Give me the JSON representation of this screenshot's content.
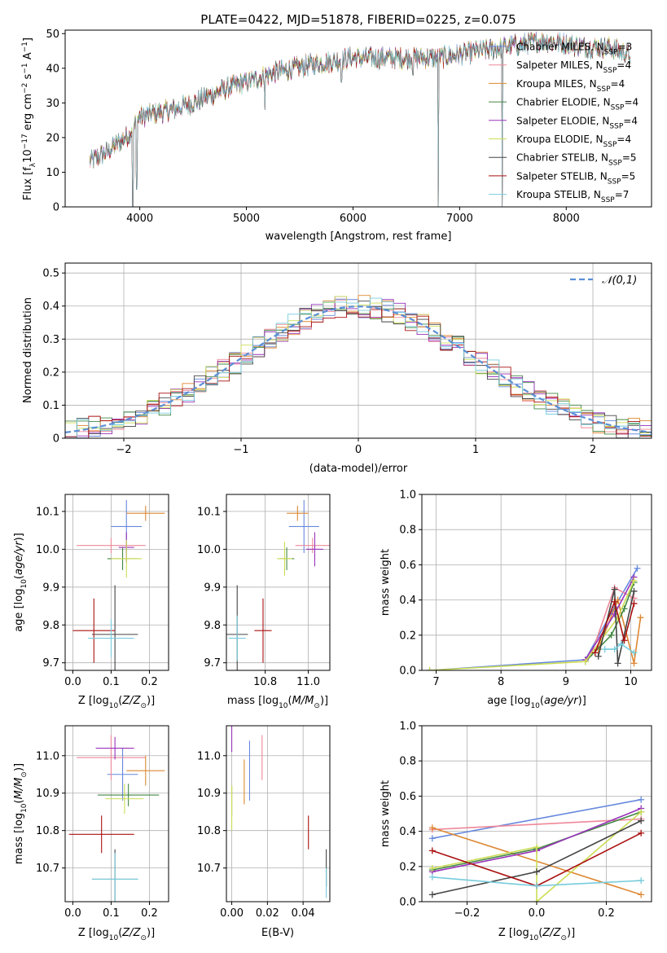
{
  "figure_title": "PLATE=0422, MJD=51878, FIBERID=0225, z=0.075",
  "colors": {
    "Chabrier MILES": "#6688dd",
    "Salpeter MILES": "#ee8899",
    "Kroupa MILES": "#dd8833",
    "Chabrier ELODIE": "#448844",
    "Salpeter ELODIE": "#9933bb",
    "Kroupa ELODIE": "#ccdd55",
    "Chabrier STELIB": "#444444",
    "Salpeter STELIB": "#aa1111",
    "Kroupa STELIB": "#77ccdd",
    "normal": "#5b8fd6"
  },
  "chart_data": [
    {
      "id": "spectrum",
      "type": "line",
      "title": "PLATE=0422, MJD=51878, FIBERID=0225, z=0.075",
      "xlabel": "wavelength [Angstrom, rest frame]",
      "ylabel": "Flux [f_λ 10^-17 erg cm^-2 s^-1 A^-1]",
      "xlim": [
        3300,
        8800
      ],
      "ylim": [
        0,
        51
      ],
      "xticks": [
        4000,
        5000,
        6000,
        7000,
        8000
      ],
      "yticks": [
        0,
        10,
        20,
        30,
        40,
        50
      ],
      "legend_position": "top-right",
      "legend": [
        {
          "label": "Chabrier MILES",
          "nssp": "3"
        },
        {
          "label": "Salpeter MILES",
          "nssp": "4"
        },
        {
          "label": "Kroupa MILES",
          "nssp": "4"
        },
        {
          "label": "Chabrier ELODIE",
          "nssp": "4"
        },
        {
          "label": "Salpeter ELODIE",
          "nssp": "4"
        },
        {
          "label": "Kroupa ELODIE",
          "nssp": "4"
        },
        {
          "label": "Chabrier STELIB",
          "nssp": "5"
        },
        {
          "label": "Salpeter STELIB",
          "nssp": "5"
        },
        {
          "label": "Kroupa STELIB",
          "nssp": "7"
        }
      ],
      "continuum": {
        "x": [
          3530,
          3700,
          3900,
          4000,
          4300,
          4500,
          4800,
          5000,
          5300,
          5600,
          5800,
          6000,
          6300,
          6600,
          6800,
          7000,
          7200,
          7400,
          7600,
          7800,
          8000,
          8200,
          8400,
          8600
        ],
        "y": [
          13,
          16,
          21,
          26,
          28,
          30,
          34,
          36,
          39,
          41,
          42,
          43,
          43,
          43,
          43,
          44,
          45,
          46,
          47,
          48,
          47,
          46,
          46,
          44
        ]
      },
      "dips": [
        {
          "x": 3935,
          "y": 0
        },
        {
          "x": 3970,
          "y": 5
        },
        {
          "x": 5175,
          "y": 28
        },
        {
          "x": 5890,
          "y": 36
        },
        {
          "x": 6563,
          "y": 38
        },
        {
          "x": 6800,
          "y": 0
        },
        {
          "x": 7400,
          "y": 0
        }
      ]
    },
    {
      "id": "residuals",
      "type": "histogram",
      "xlabel": "(data-model)/error",
      "ylabel": "Normed distribution",
      "xlim": [
        -2.5,
        2.5
      ],
      "ylim": [
        0,
        0.53
      ],
      "xticks": [
        -2,
        -1,
        0,
        1,
        2
      ],
      "yticks": [
        0,
        0.1,
        0.2,
        0.3,
        0.4,
        0.5
      ],
      "bin_width": 0.1,
      "legend": "𝒩(0,1)",
      "legend_position": "top-right",
      "reference_curve": "normal(0,1)"
    },
    {
      "id": "age-vs-Z",
      "type": "scatter",
      "xlabel": "Z [log10(Z/Z⊙)]",
      "ylabel": "age [log10(age/yr)]",
      "xlim": [
        -0.02,
        0.25
      ],
      "ylim": [
        9.68,
        10.145
      ],
      "xticks": [
        0.0,
        0.1,
        0.2
      ],
      "yticks": [
        9.7,
        9.8,
        9.9,
        10.0,
        10.1
      ],
      "points": [
        {
          "model": "Chabrier MILES",
          "x": 0.14,
          "y": 10.06,
          "xerr": 0.04,
          "yerr": 0.07
        },
        {
          "model": "Salpeter MILES",
          "x": 0.1,
          "y": 10.01,
          "xerr": 0.09,
          "yerr": 0.02
        },
        {
          "model": "Kroupa MILES",
          "x": 0.19,
          "y": 10.095,
          "xerr": 0.05,
          "yerr": 0.02
        },
        {
          "model": "Chabrier ELODIE",
          "x": 0.13,
          "y": 9.975,
          "xerr": 0.04,
          "yerr": 0.03
        },
        {
          "model": "Salpeter ELODIE",
          "x": 0.14,
          "y": 10.005,
          "xerr": 0.02,
          "yerr": 0.04
        },
        {
          "model": "Kroupa ELODIE",
          "x": 0.14,
          "y": 9.975,
          "xerr": 0.04,
          "yerr": 0.05
        },
        {
          "model": "Chabrier STELIB",
          "x": 0.11,
          "y": 9.775,
          "xerr": 0.06,
          "yerr": 0.13
        },
        {
          "model": "Salpeter STELIB",
          "x": 0.055,
          "y": 9.785,
          "xerr": 0.055,
          "yerr": 0.085
        },
        {
          "model": "Kroupa STELIB",
          "x": 0.1,
          "y": 9.765,
          "xerr": 0.06,
          "yerr": 0.05
        }
      ]
    },
    {
      "id": "age-vs-mass",
      "type": "scatter",
      "xlabel": "mass [log10(M/M⊙)]",
      "ylabel": "",
      "xlim": [
        10.62,
        11.1
      ],
      "ylim": [
        9.68,
        10.145
      ],
      "xticks": [
        10.8,
        11.0
      ],
      "yticks": [
        9.7,
        9.8,
        9.9,
        10.0,
        10.1
      ],
      "points": [
        {
          "model": "Chabrier MILES",
          "x": 10.98,
          "y": 10.06,
          "xerr": 0.07,
          "yerr": 0.07
        },
        {
          "model": "Salpeter MILES",
          "x": 11.02,
          "y": 10.01,
          "xerr": 0.08,
          "yerr": 0.02
        },
        {
          "model": "Kroupa MILES",
          "x": 10.95,
          "y": 10.095,
          "xerr": 0.05,
          "yerr": 0.02
        },
        {
          "model": "Chabrier ELODIE",
          "x": 10.9,
          "y": 9.975,
          "xerr": 0.035,
          "yerr": 0.03
        },
        {
          "model": "Salpeter ELODIE",
          "x": 11.03,
          "y": 10.0,
          "xerr": 0.04,
          "yerr": 0.045
        },
        {
          "model": "Kroupa ELODIE",
          "x": 10.89,
          "y": 9.975,
          "xerr": 0.035,
          "yerr": 0.045
        },
        {
          "model": "Chabrier STELIB",
          "x": 10.67,
          "y": 9.775,
          "xerr": 0.05,
          "yerr": 0.13
        },
        {
          "model": "Salpeter STELIB",
          "x": 10.79,
          "y": 9.785,
          "xerr": 0.04,
          "yerr": 0.085
        },
        {
          "model": "Kroupa STELIB",
          "x": 10.67,
          "y": 9.765,
          "xerr": 0.04,
          "yerr": 0.06
        }
      ]
    },
    {
      "id": "mass-weight-vs-age",
      "type": "line",
      "xlabel": "age [log10(age/yr)]",
      "ylabel": "mass weight",
      "xlim": [
        6.78,
        10.32
      ],
      "ylim": [
        0,
        1
      ],
      "xticks": [
        7,
        8,
        9,
        10
      ],
      "yticks": [
        0.0,
        0.2,
        0.4,
        0.6,
        0.8,
        1.0
      ],
      "series": [
        {
          "model": "Chabrier MILES",
          "x": [
            6.9,
            9.3,
            9.75,
            10.1
          ],
          "y": [
            0.0,
            0.06,
            0.36,
            0.58
          ]
        },
        {
          "model": "Salpeter MILES",
          "x": [
            9.4,
            9.75,
            10.05
          ],
          "y": [
            0.1,
            0.47,
            0.41
          ]
        },
        {
          "model": "Kroupa MILES",
          "x": [
            9.5,
            9.8,
            10.05,
            10.15
          ],
          "y": [
            0.12,
            0.4,
            0.04,
            0.3
          ]
        },
        {
          "model": "Chabrier ELODIE",
          "x": [
            9.3,
            9.7,
            9.9,
            10.05
          ],
          "y": [
            0.05,
            0.2,
            0.35,
            0.5
          ]
        },
        {
          "model": "Salpeter ELODIE",
          "x": [
            9.3,
            9.75,
            10.05
          ],
          "y": [
            0.06,
            0.32,
            0.53
          ]
        },
        {
          "model": "Kroupa ELODIE",
          "x": [
            6.9,
            9.3,
            9.8,
            10.05
          ],
          "y": [
            0.0,
            0.05,
            0.3,
            0.51
          ]
        },
        {
          "model": "Chabrier STELIB",
          "x": [
            9.5,
            9.75,
            9.8,
            10.05
          ],
          "y": [
            0.08,
            0.46,
            0.04,
            0.45
          ]
        },
        {
          "model": "Salpeter STELIB",
          "x": [
            9.45,
            9.75,
            9.9,
            10.05
          ],
          "y": [
            0.1,
            0.39,
            0.17,
            0.38
          ]
        },
        {
          "model": "Kroupa STELIB",
          "x": [
            9.6,
            9.75,
            9.85,
            10.05
          ],
          "y": [
            0.12,
            0.12,
            0.15,
            0.1
          ]
        }
      ]
    },
    {
      "id": "mass-vs-Z",
      "type": "scatter",
      "xlabel": "Z [log10(Z/Z⊙)]",
      "ylabel": "mass [log10(M/M⊙)]",
      "xlim": [
        -0.02,
        0.25
      ],
      "ylim": [
        10.61,
        11.08
      ],
      "xticks": [
        0.0,
        0.1,
        0.2
      ],
      "yticks": [
        10.7,
        10.8,
        10.9,
        11.0
      ],
      "points": [
        {
          "model": "Chabrier MILES",
          "x": 0.13,
          "y": 10.95,
          "xerr": 0.04,
          "yerr": 0.07
        },
        {
          "model": "Salpeter MILES",
          "x": 0.1,
          "y": 10.995,
          "xerr": 0.09,
          "yerr": 0.06
        },
        {
          "model": "Kroupa MILES",
          "x": 0.19,
          "y": 10.96,
          "xerr": 0.05,
          "yerr": 0.04
        },
        {
          "model": "Chabrier ELODIE",
          "x": 0.145,
          "y": 10.895,
          "xerr": 0.08,
          "yerr": 0.03
        },
        {
          "model": "Salpeter ELODIE",
          "x": 0.11,
          "y": 11.02,
          "xerr": 0.05,
          "yerr": 0.03
        },
        {
          "model": "Kroupa ELODIE",
          "x": 0.135,
          "y": 10.885,
          "xerr": 0.05,
          "yerr": 0.04
        },
        {
          "model": "Chabrier STELIB",
          "x": 0.11,
          "y": 10.67,
          "xerr": 0.06,
          "yerr": 0.08
        },
        {
          "model": "Salpeter STELIB",
          "x": 0.075,
          "y": 10.79,
          "xerr": 0.085,
          "yerr": 0.05
        },
        {
          "model": "Kroupa STELIB",
          "x": 0.11,
          "y": 10.67,
          "xerr": 0.06,
          "yerr": 0.07
        }
      ]
    },
    {
      "id": "mass-vs-EBV",
      "type": "scatter",
      "xlabel": "E(B-V)",
      "ylabel": "",
      "xlim": [
        -0.003,
        0.055
      ],
      "ylim": [
        10.61,
        11.08
      ],
      "xticks": [
        0.0,
        0.02,
        0.04
      ],
      "yticks": [
        10.7,
        10.8,
        10.9,
        11.0
      ],
      "points": [
        {
          "model": "Chabrier MILES",
          "x": 0.01,
          "y": 10.96,
          "xerr": 0,
          "yerr": 0.08
        },
        {
          "model": "Salpeter MILES",
          "x": 0.017,
          "y": 10.995,
          "xerr": 0,
          "yerr": 0.06
        },
        {
          "model": "Kroupa MILES",
          "x": 0.007,
          "y": 10.93,
          "xerr": 0,
          "yerr": 0.06
        },
        {
          "model": "Chabrier ELODIE",
          "x": 0.0,
          "y": 10.88,
          "xerr": 0,
          "yerr": 0.04
        },
        {
          "model": "Salpeter ELODIE",
          "x": 0.0,
          "y": 11.07,
          "xerr": 0,
          "yerr": 0.06
        },
        {
          "model": "Kroupa ELODIE",
          "x": 0.0,
          "y": 10.86,
          "xerr": 0,
          "yerr": 0.06
        },
        {
          "model": "Chabrier STELIB",
          "x": 0.053,
          "y": 10.7,
          "xerr": 0,
          "yerr": 0.05
        },
        {
          "model": "Salpeter STELIB",
          "x": 0.043,
          "y": 10.795,
          "xerr": 0,
          "yerr": 0.045
        },
        {
          "model": "Kroupa STELIB",
          "x": 0.053,
          "y": 10.66,
          "xerr": 0,
          "yerr": 0.04
        }
      ]
    },
    {
      "id": "mass-weight-vs-Z",
      "type": "line",
      "xlabel": "Z [log10(Z/Z⊙)]",
      "ylabel": "mass weight",
      "xlim": [
        -0.33,
        0.33
      ],
      "ylim": [
        0,
        1
      ],
      "xticks": [
        -0.2,
        0.0,
        0.2
      ],
      "yticks": [
        0.0,
        0.2,
        0.4,
        0.6,
        0.8,
        1.0
      ],
      "series": [
        {
          "model": "Chabrier MILES",
          "x": [
            -0.3,
            0.3
          ],
          "y": [
            0.36,
            0.58
          ]
        },
        {
          "model": "Salpeter MILES",
          "x": [
            -0.3,
            0.3
          ],
          "y": [
            0.41,
            0.47
          ]
        },
        {
          "model": "Kroupa MILES",
          "x": [
            -0.3,
            0.3
          ],
          "y": [
            0.42,
            0.04
          ]
        },
        {
          "model": "Chabrier ELODIE",
          "x": [
            -0.3,
            0.0,
            0.3
          ],
          "y": [
            0.18,
            0.3,
            0.51
          ]
        },
        {
          "model": "Salpeter ELODIE",
          "x": [
            -0.3,
            0.0,
            0.3
          ],
          "y": [
            0.17,
            0.29,
            0.53
          ]
        },
        {
          "model": "Kroupa ELODIE",
          "x": [
            -0.3,
            0.0,
            0.0,
            0.3
          ],
          "y": [
            0.19,
            0.31,
            0.0,
            0.51
          ]
        },
        {
          "model": "Chabrier STELIB",
          "x": [
            -0.3,
            0.0,
            0.3
          ],
          "y": [
            0.04,
            0.17,
            0.46
          ]
        },
        {
          "model": "Salpeter STELIB",
          "x": [
            -0.3,
            0.0,
            0.3
          ],
          "y": [
            0.29,
            0.09,
            0.39
          ]
        },
        {
          "model": "Kroupa STELIB",
          "x": [
            -0.3,
            0.0,
            0.3
          ],
          "y": [
            0.14,
            0.09,
            0.12
          ]
        }
      ]
    }
  ]
}
